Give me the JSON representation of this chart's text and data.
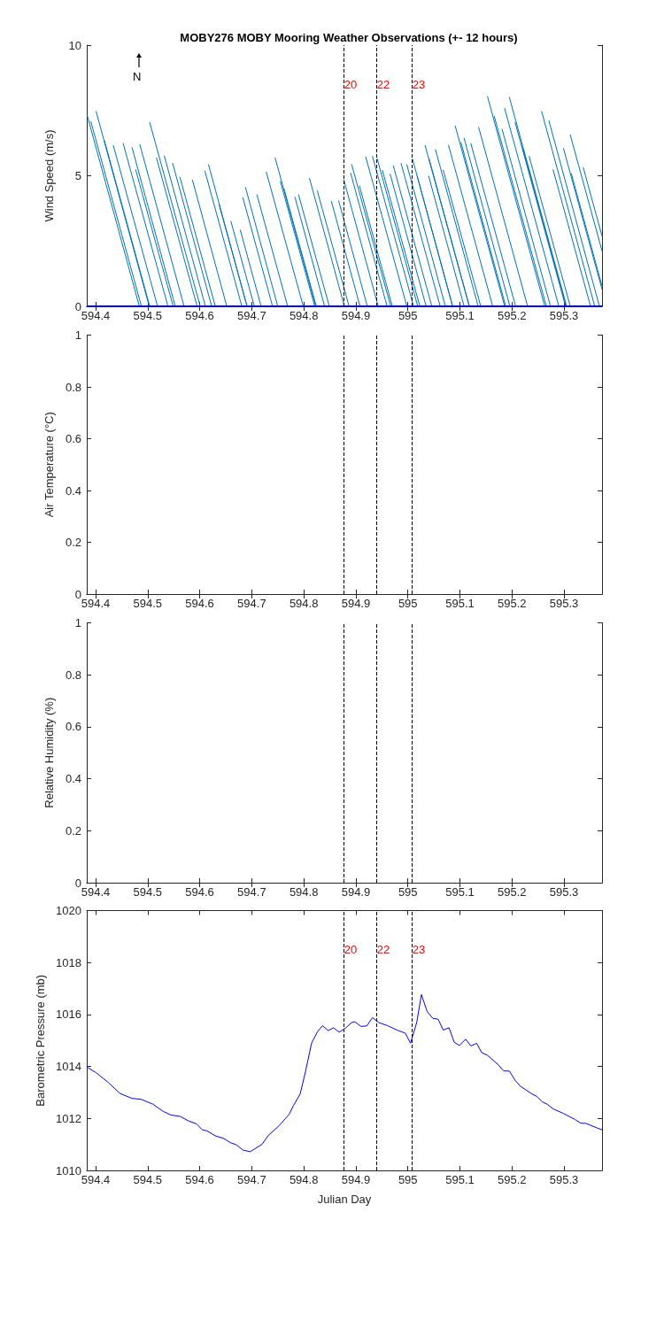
{
  "chart_data": [
    {
      "type": "line",
      "title": "MOBY276 MOBY Mooring Weather Observations (+- 12 hours)",
      "ylabel": "Wind Speed (m/s)",
      "marker": "none",
      "grid": false,
      "annotations": [
        "N",
        {
          "text": "20",
          "x": 594.876,
          "y": 8.5
        },
        {
          "text": "22",
          "x": 594.939,
          "y": 8.5
        },
        {
          "text": "23",
          "x": 595.007,
          "y": 8.5
        }
      ],
      "xlim": [
        594.383,
        595.373
      ],
      "xticks": [
        594.4,
        594.5,
        594.6,
        594.7,
        594.8,
        594.9,
        595,
        595.1,
        595.2,
        595.3
      ],
      "ylim": [
        0,
        10
      ],
      "yticks": [
        0,
        5,
        10
      ],
      "ref_lines": [
        {
          "axis": "y",
          "value": 0,
          "color": "#0000ff",
          "line_style": "solid"
        },
        {
          "axis": "x",
          "value": 594.876,
          "color": "#000000",
          "line_style": "dashed"
        },
        {
          "axis": "x",
          "value": 594.939,
          "color": "#000000",
          "line_style": "dashed"
        },
        {
          "axis": "x",
          "value": 595.007,
          "color": "#000000",
          "line_style": "dashed"
        }
      ],
      "series": [
        {
          "color": "#0072bd",
          "x": [
            594.384,
            594.484,
            null,
            594.391,
            594.488,
            null,
            594.401,
            594.503,
            null,
            594.417,
            594.504,
            null,
            594.434,
            594.519,
            null,
            594.453,
            594.539,
            null,
            594.47,
            594.553,
            null,
            594.477,
            594.549,
            null,
            594.485,
            594.57,
            null,
            594.504,
            594.601,
            null,
            594.517,
            594.595,
            null,
            594.532,
            594.611,
            null,
            594.548,
            594.623,
            null,
            594.562,
            594.63,
            null,
            594.586,
            594.652,
            null,
            594.61,
            594.681,
            null,
            594.617,
            594.691,
            null,
            594.637,
            594.691,
            null,
            594.66,
            594.705,
            null,
            594.678,
            594.718,
            null,
            594.683,
            594.74,
            null,
            594.688,
            594.75,
            null,
            594.71,
            594.769,
            null,
            594.728,
            594.799,
            null,
            594.745,
            594.823,
            null,
            594.755,
            594.821,
            null,
            594.762,
            594.824,
            null,
            594.783,
            594.84,
            null,
            594.79,
            594.849,
            null,
            594.811,
            594.878,
            null,
            594.826,
            594.887,
            null,
            594.853,
            594.908,
            null,
            594.867,
            594.922,
            null,
            594.877,
            594.943,
            null,
            594.89,
            594.96,
            null,
            594.892,
            594.967,
            null,
            594.907,
            594.97,
            null,
            594.919,
            594.998,
            null,
            594.932,
            595.011,
            null,
            594.941,
            595.019,
            null,
            594.951,
            595.023,
            null,
            594.966,
            595.035,
            null,
            594.972,
            595.046,
            null,
            594.987,
            595.062,
            null,
            594.998,
            595.072,
            null,
            595.009,
            595.086,
            null,
            595.018,
            595.086,
            null,
            595.033,
            595.118,
            null,
            595.04,
            595.108,
            null,
            595.041,
            595.118,
            null,
            595.053,
            595.135,
            null,
            595.068,
            595.14,
            null,
            595.078,
            595.163,
            null,
            595.091,
            595.186,
            null,
            595.102,
            595.188,
            null,
            595.108,
            595.196,
            null,
            595.121,
            595.207,
            null,
            595.136,
            595.23,
            null,
            595.153,
            595.263,
            null,
            595.166,
            595.266,
            null,
            595.181,
            595.274,
            null,
            595.186,
            595.29,
            null,
            595.195,
            595.305,
            null,
            595.206,
            595.303,
            null,
            595.221,
            595.304,
            null,
            595.233,
            595.312,
            null,
            595.257,
            595.359,
            null,
            595.271,
            595.368,
            null,
            595.279,
            595.351,
            null,
            595.299,
            595.373,
            null,
            595.312,
            595.373,
            null,
            595.314,
            595.373,
            null,
            595.337,
            595.373
          ],
          "values": [
            7.3,
            0,
            null,
            7.07,
            0,
            null,
            7.46,
            0,
            null,
            6.34,
            0,
            null,
            6.16,
            0,
            null,
            6.23,
            0,
            null,
            6.08,
            0,
            null,
            5.23,
            0,
            null,
            6.19,
            0,
            null,
            7.04,
            0,
            null,
            5.68,
            0,
            null,
            5.76,
            0,
            null,
            5.48,
            0,
            null,
            4.95,
            0,
            null,
            4.84,
            0,
            null,
            5.18,
            0,
            null,
            5.42,
            0,
            null,
            3.91,
            0,
            null,
            3.25,
            0,
            null,
            2.92,
            0,
            null,
            4.16,
            0,
            null,
            4.55,
            0,
            null,
            4.27,
            0,
            null,
            5.14,
            0,
            null,
            5.68,
            0,
            null,
            4.78,
            0,
            null,
            4.5,
            0,
            null,
            4.18,
            0,
            null,
            4.27,
            0,
            null,
            4.9,
            0,
            null,
            4.42,
            0,
            null,
            4.02,
            0,
            null,
            4.04,
            0,
            null,
            4.84,
            0,
            null,
            5.1,
            0,
            null,
            5.43,
            0,
            null,
            4.61,
            0,
            null,
            5.72,
            0,
            null,
            5.74,
            0,
            null,
            5.65,
            0,
            null,
            5.21,
            0,
            null,
            5.06,
            0,
            null,
            5.38,
            0,
            null,
            5.47,
            0,
            null,
            5.42,
            0,
            null,
            5.63,
            0,
            null,
            4.98,
            0,
            null,
            6.16,
            0,
            null,
            4.98,
            0,
            null,
            5.63,
            0,
            null,
            6.0,
            0,
            null,
            5.21,
            0,
            null,
            6.17,
            0,
            null,
            6.9,
            0,
            null,
            6.27,
            0,
            null,
            6.44,
            0,
            null,
            6.23,
            0,
            null,
            6.85,
            0,
            null,
            8.03,
            0,
            null,
            7.27,
            0,
            null,
            6.78,
            0,
            null,
            7.57,
            0,
            null,
            8.0,
            0,
            null,
            7.04,
            0,
            null,
            6.04,
            0,
            null,
            5.74,
            0,
            null,
            7.46,
            0,
            null,
            7.1,
            0,
            null,
            5.23,
            0,
            null,
            6.04,
            0.65,
            null,
            6.56,
            2.12,
            null,
            5.08,
            0.78,
            null,
            5.31,
            2.69
          ]
        }
      ]
    },
    {
      "type": "line",
      "ylabel": "Air Temperature (°C)",
      "grid": false,
      "xlim": [
        594.383,
        595.373
      ],
      "xticks": [
        594.4,
        594.5,
        594.6,
        594.7,
        594.8,
        594.9,
        595,
        595.1,
        595.2,
        595.3
      ],
      "ylim": [
        0,
        1
      ],
      "yticks": [
        0,
        0.2,
        0.4,
        0.6,
        0.8,
        1
      ],
      "ref_lines": [
        {
          "axis": "x",
          "value": 594.876,
          "color": "#000000",
          "line_style": "dashed"
        },
        {
          "axis": "x",
          "value": 594.939,
          "color": "#000000",
          "line_style": "dashed"
        },
        {
          "axis": "x",
          "value": 595.007,
          "color": "#000000",
          "line_style": "dashed"
        }
      ]
    },
    {
      "type": "line",
      "ylabel": "Relative Humidity (%)",
      "grid": false,
      "xlim": [
        594.383,
        595.373
      ],
      "xticks": [
        594.4,
        594.5,
        594.6,
        594.7,
        594.8,
        594.9,
        595,
        595.1,
        595.2,
        595.3
      ],
      "ylim": [
        0,
        1
      ],
      "yticks": [
        0,
        0.2,
        0.4,
        0.6,
        0.8,
        1
      ],
      "ref_lines": [
        {
          "axis": "x",
          "value": 594.876,
          "color": "#000000",
          "line_style": "dashed"
        },
        {
          "axis": "x",
          "value": 594.939,
          "color": "#000000",
          "line_style": "dashed"
        },
        {
          "axis": "x",
          "value": 595.007,
          "color": "#000000",
          "line_style": "dashed"
        }
      ]
    },
    {
      "type": "line",
      "xlabel": "Julian Day",
      "ylabel": "Barometric Pressure (mb)",
      "marker": "none",
      "grid": false,
      "annotations": [
        {
          "text": "20",
          "x": 594.876,
          "y": 1018.5
        },
        {
          "text": "22",
          "x": 594.939,
          "y": 1018.5
        },
        {
          "text": "23",
          "x": 595.007,
          "y": 1018.5
        }
      ],
      "xlim": [
        594.383,
        595.373
      ],
      "xticks": [
        594.4,
        594.5,
        594.6,
        594.7,
        594.8,
        594.9,
        595,
        595.1,
        595.2,
        595.3
      ],
      "ylim": [
        1010,
        1020
      ],
      "yticks": [
        1010,
        1012,
        1014,
        1016,
        1018,
        1020
      ],
      "ref_lines": [
        {
          "axis": "x",
          "value": 594.876,
          "color": "#000000",
          "line_style": "dashed"
        },
        {
          "axis": "x",
          "value": 594.939,
          "color": "#000000",
          "line_style": "dashed"
        },
        {
          "axis": "x",
          "value": 595.007,
          "color": "#000000",
          "line_style": "dashed"
        }
      ],
      "series": [
        {
          "color": "#0000ff",
          "x": [
            594.384,
            594.401,
            594.424,
            594.447,
            594.47,
            594.487,
            594.51,
            594.53,
            594.545,
            594.562,
            594.579,
            594.594,
            594.605,
            594.614,
            594.631,
            594.645,
            594.66,
            594.671,
            594.683,
            594.697,
            594.72,
            594.732,
            594.752,
            594.772,
            594.78,
            594.793,
            594.803,
            594.815,
            594.826,
            594.836,
            594.847,
            594.857,
            594.868,
            594.881,
            594.892,
            594.898,
            594.91,
            594.921,
            594.932,
            594.944,
            594.961,
            594.979,
            594.995,
            595.005,
            595.017,
            595.026,
            595.037,
            595.048,
            595.058,
            595.068,
            595.079,
            595.089,
            595.099,
            595.111,
            595.121,
            595.132,
            595.142,
            595.153,
            595.174,
            595.184,
            595.195,
            595.206,
            595.216,
            595.237,
            595.248,
            595.258,
            595.268,
            595.279,
            595.299,
            595.321,
            595.332,
            595.342,
            595.364,
            595.373
          ],
          "values": [
            1013.97,
            1013.76,
            1013.39,
            1012.96,
            1012.77,
            1012.74,
            1012.55,
            1012.27,
            1012.13,
            1012.08,
            1011.9,
            1011.79,
            1011.56,
            1011.52,
            1011.32,
            1011.24,
            1011.06,
            1010.98,
            1010.78,
            1010.72,
            1011.01,
            1011.35,
            1011.71,
            1012.16,
            1012.49,
            1012.94,
            1013.78,
            1014.9,
            1015.33,
            1015.57,
            1015.38,
            1015.49,
            1015.32,
            1015.49,
            1015.69,
            1015.72,
            1015.54,
            1015.56,
            1015.88,
            1015.69,
            1015.57,
            1015.4,
            1015.28,
            1014.9,
            1015.69,
            1016.77,
            1016.11,
            1015.85,
            1015.82,
            1015.4,
            1015.49,
            1014.93,
            1014.81,
            1015.05,
            1014.79,
            1014.89,
            1014.53,
            1014.43,
            1014.06,
            1013.83,
            1013.82,
            1013.47,
            1013.24,
            1012.96,
            1012.84,
            1012.64,
            1012.54,
            1012.37,
            1012.19,
            1011.96,
            1011.82,
            1011.81,
            1011.63,
            1011.56
          ]
        }
      ]
    }
  ]
}
